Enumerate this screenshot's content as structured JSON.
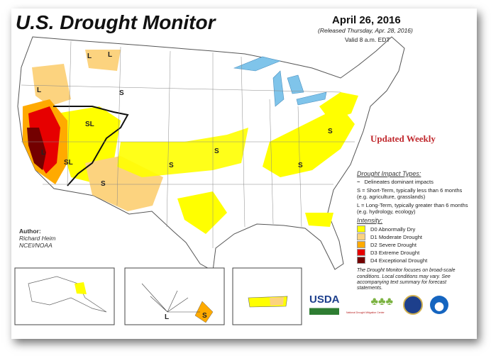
{
  "header": {
    "title": "U.S. Drought Monitor",
    "date": "April 26, 2016",
    "released": "(Released Thursday, Apr. 28, 2016)",
    "valid": "Valid 8 a.m. EDT"
  },
  "updated_note": "Updated Weekly",
  "legend": {
    "impact_heading": "Drought Impact Types:",
    "delineates": "Delineates dominant impacts",
    "short_term": "S = Short-Term, typically less than 6 months (e.g. agriculture, grasslands)",
    "long_term": "L = Long-Term, typically greater than 6 months (e.g. hydrology, ecology)",
    "intensity_heading": "Intensity:",
    "intensity": [
      {
        "label": "D0 Abnormally Dry",
        "color": "#ffff00"
      },
      {
        "label": "D1 Moderate Drought",
        "color": "#fcd37f"
      },
      {
        "label": "D2 Severe Drought",
        "color": "#ffaa00"
      },
      {
        "label": "D3 Extreme Drought",
        "color": "#e60000"
      },
      {
        "label": "D4 Exceptional Drought",
        "color": "#730000"
      }
    ],
    "note": "The Drought Monitor focuses on broad-scale conditions. Local conditions may vary. See accompanying text summary for forecast statements."
  },
  "author": {
    "heading": "Author:",
    "name": "Richard Heim",
    "org": "NCEI/NOAA"
  },
  "map_labels": [
    "L",
    "L",
    "L",
    "S",
    "SL",
    "SL",
    "L",
    "S",
    "S",
    "S",
    "S",
    "S",
    "L",
    "S"
  ],
  "logos": {
    "usda": "USDA",
    "ndmc": "National Drought Mitigation Center"
  }
}
